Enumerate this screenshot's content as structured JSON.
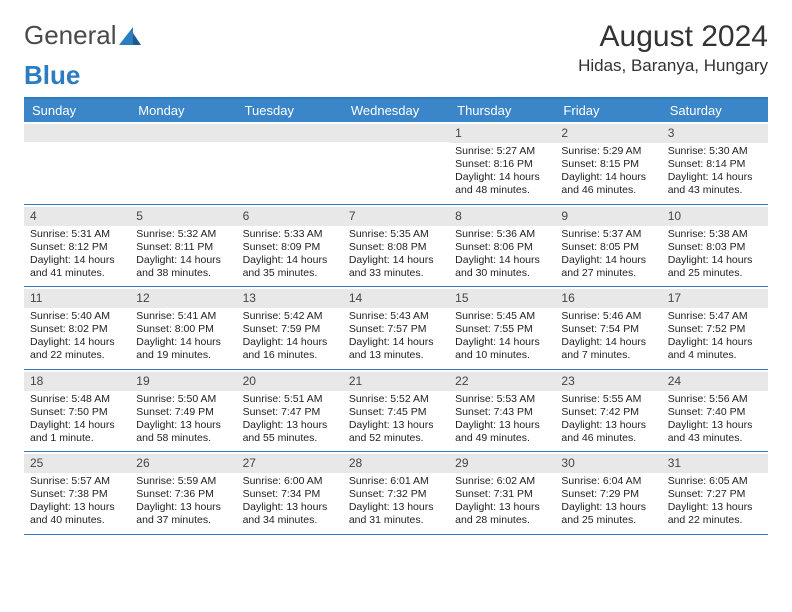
{
  "logo": {
    "text1": "General",
    "text2": "Blue"
  },
  "title": "August 2024",
  "location": "Hidas, Baranya, Hungary",
  "colors": {
    "header_bg": "#3a86c8",
    "border": "#2b7cc0",
    "daynum_bg": "#e8e8e8",
    "text": "#222222",
    "logo_gray": "#4a4a4a",
    "logo_blue": "#2b7cc0"
  },
  "day_names": [
    "Sunday",
    "Monday",
    "Tuesday",
    "Wednesday",
    "Thursday",
    "Friday",
    "Saturday"
  ],
  "weeks": [
    [
      null,
      null,
      null,
      null,
      {
        "n": "1",
        "sr": "5:27 AM",
        "ss": "8:16 PM",
        "dl": "14 hours and 48 minutes."
      },
      {
        "n": "2",
        "sr": "5:29 AM",
        "ss": "8:15 PM",
        "dl": "14 hours and 46 minutes."
      },
      {
        "n": "3",
        "sr": "5:30 AM",
        "ss": "8:14 PM",
        "dl": "14 hours and 43 minutes."
      }
    ],
    [
      {
        "n": "4",
        "sr": "5:31 AM",
        "ss": "8:12 PM",
        "dl": "14 hours and 41 minutes."
      },
      {
        "n": "5",
        "sr": "5:32 AM",
        "ss": "8:11 PM",
        "dl": "14 hours and 38 minutes."
      },
      {
        "n": "6",
        "sr": "5:33 AM",
        "ss": "8:09 PM",
        "dl": "14 hours and 35 minutes."
      },
      {
        "n": "7",
        "sr": "5:35 AM",
        "ss": "8:08 PM",
        "dl": "14 hours and 33 minutes."
      },
      {
        "n": "8",
        "sr": "5:36 AM",
        "ss": "8:06 PM",
        "dl": "14 hours and 30 minutes."
      },
      {
        "n": "9",
        "sr": "5:37 AM",
        "ss": "8:05 PM",
        "dl": "14 hours and 27 minutes."
      },
      {
        "n": "10",
        "sr": "5:38 AM",
        "ss": "8:03 PM",
        "dl": "14 hours and 25 minutes."
      }
    ],
    [
      {
        "n": "11",
        "sr": "5:40 AM",
        "ss": "8:02 PM",
        "dl": "14 hours and 22 minutes."
      },
      {
        "n": "12",
        "sr": "5:41 AM",
        "ss": "8:00 PM",
        "dl": "14 hours and 19 minutes."
      },
      {
        "n": "13",
        "sr": "5:42 AM",
        "ss": "7:59 PM",
        "dl": "14 hours and 16 minutes."
      },
      {
        "n": "14",
        "sr": "5:43 AM",
        "ss": "7:57 PM",
        "dl": "14 hours and 13 minutes."
      },
      {
        "n": "15",
        "sr": "5:45 AM",
        "ss": "7:55 PM",
        "dl": "14 hours and 10 minutes."
      },
      {
        "n": "16",
        "sr": "5:46 AM",
        "ss": "7:54 PM",
        "dl": "14 hours and 7 minutes."
      },
      {
        "n": "17",
        "sr": "5:47 AM",
        "ss": "7:52 PM",
        "dl": "14 hours and 4 minutes."
      }
    ],
    [
      {
        "n": "18",
        "sr": "5:48 AM",
        "ss": "7:50 PM",
        "dl": "14 hours and 1 minute."
      },
      {
        "n": "19",
        "sr": "5:50 AM",
        "ss": "7:49 PM",
        "dl": "13 hours and 58 minutes."
      },
      {
        "n": "20",
        "sr": "5:51 AM",
        "ss": "7:47 PM",
        "dl": "13 hours and 55 minutes."
      },
      {
        "n": "21",
        "sr": "5:52 AM",
        "ss": "7:45 PM",
        "dl": "13 hours and 52 minutes."
      },
      {
        "n": "22",
        "sr": "5:53 AM",
        "ss": "7:43 PM",
        "dl": "13 hours and 49 minutes."
      },
      {
        "n": "23",
        "sr": "5:55 AM",
        "ss": "7:42 PM",
        "dl": "13 hours and 46 minutes."
      },
      {
        "n": "24",
        "sr": "5:56 AM",
        "ss": "7:40 PM",
        "dl": "13 hours and 43 minutes."
      }
    ],
    [
      {
        "n": "25",
        "sr": "5:57 AM",
        "ss": "7:38 PM",
        "dl": "13 hours and 40 minutes."
      },
      {
        "n": "26",
        "sr": "5:59 AM",
        "ss": "7:36 PM",
        "dl": "13 hours and 37 minutes."
      },
      {
        "n": "27",
        "sr": "6:00 AM",
        "ss": "7:34 PM",
        "dl": "13 hours and 34 minutes."
      },
      {
        "n": "28",
        "sr": "6:01 AM",
        "ss": "7:32 PM",
        "dl": "13 hours and 31 minutes."
      },
      {
        "n": "29",
        "sr": "6:02 AM",
        "ss": "7:31 PM",
        "dl": "13 hours and 28 minutes."
      },
      {
        "n": "30",
        "sr": "6:04 AM",
        "ss": "7:29 PM",
        "dl": "13 hours and 25 minutes."
      },
      {
        "n": "31",
        "sr": "6:05 AM",
        "ss": "7:27 PM",
        "dl": "13 hours and 22 minutes."
      }
    ]
  ],
  "labels": {
    "sunrise": "Sunrise:",
    "sunset": "Sunset:",
    "daylight": "Daylight:"
  }
}
